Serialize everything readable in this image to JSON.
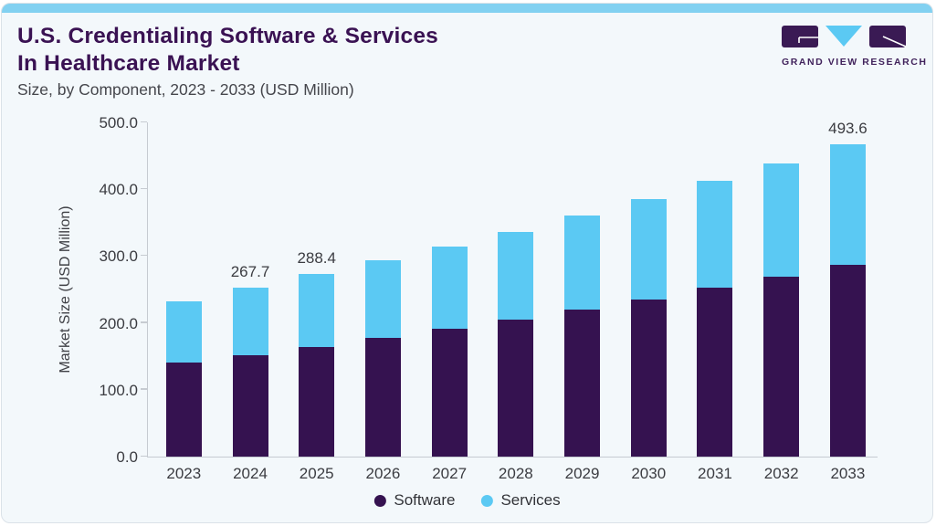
{
  "page": {
    "background": "#ffffff"
  },
  "card": {
    "background": "#f3f8fb",
    "accent_color": "#82d1f1",
    "border_color": "#dbe2e8"
  },
  "header": {
    "title_line1": "U.S. Credentialing Software & Services",
    "title_line2": "In Healthcare Market",
    "subtitle": "Size, by Component, 2023 - 2033 (USD Million)",
    "title_color": "#3a1253"
  },
  "logo": {
    "name": "GRAND VIEW RESEARCH",
    "purple": "#3a1a54",
    "blue": "#5bc9f3"
  },
  "chart_data": {
    "type": "bar",
    "stacked": true,
    "title": "U.S. Credentialing Software & Services In Healthcare Market",
    "subtitle": "Size, by Component, 2023 - 2033 (USD Million)",
    "ylabel": "Market Size (USD Million)",
    "xlabel": "",
    "ylim": [
      0,
      500
    ],
    "ytick_labels": [
      "0.0",
      "100.0",
      "200.0",
      "300.0",
      "400.0",
      "500.0"
    ],
    "grid": false,
    "legend_position": "bottom",
    "categories": [
      "2023",
      "2024",
      "2025",
      "2026",
      "2027",
      "2028",
      "2029",
      "2030",
      "2031",
      "2032",
      "2033"
    ],
    "series": [
      {
        "name": "Software",
        "color": "#351250",
        "values": [
          149.0,
          161.0,
          174.0,
          188.0,
          202.0,
          217.0,
          232.0,
          249.0,
          267.0,
          285.0,
          303.0
        ]
      },
      {
        "name": "Services",
        "color": "#5bc9f3",
        "values": [
          97.3,
          106.7,
          114.4,
          122.0,
          130.0,
          139.0,
          149.0,
          159.0,
          169.0,
          179.0,
          190.6
        ]
      }
    ],
    "totals": [
      246.3,
      267.7,
      288.4,
      310.0,
      332.0,
      356.0,
      381.0,
      408.0,
      436.0,
      464.0,
      493.6
    ],
    "value_labels": [
      "",
      "267.7",
      "288.4",
      "",
      "",
      "",
      "",
      "",
      "",
      "",
      "493.6"
    ]
  }
}
